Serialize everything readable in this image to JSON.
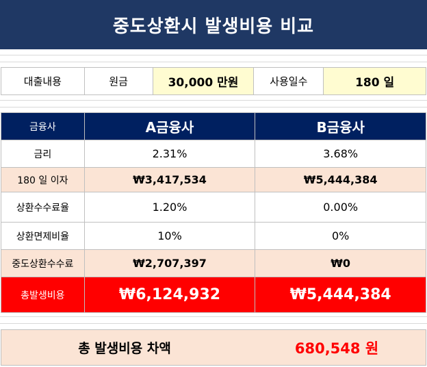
{
  "title": "중도상환시 발생비용 비교",
  "loan": {
    "label": "대출내용",
    "principal_label": "원금",
    "principal_value": "30,000 만원",
    "days_label": "사용일수",
    "days_value": "180 일"
  },
  "comparison": {
    "header": {
      "label": "금융사",
      "a": "A금융사",
      "b": "B금융사"
    },
    "rows": [
      {
        "label": "금리",
        "a": "2.31%",
        "b": "3.68%"
      },
      {
        "label": "180 일 이자",
        "a": "₩3,417,534",
        "b": "₩5,444,384"
      },
      {
        "label": "상환수수료율",
        "a": "1.20%",
        "b": "0.00%"
      },
      {
        "label": "상환면제비율",
        "a": "10%",
        "b": "0%"
      },
      {
        "label": "중도상환수수료",
        "a": "₩2,707,397",
        "b": "₩0"
      }
    ],
    "total": {
      "label": "총발생비용",
      "a": "₩6,124,932",
      "b": "₩5,444,384"
    }
  },
  "summary": {
    "label": "총 발생비용 차액",
    "value": "680,548 원"
  },
  "colors": {
    "title_bg": "#1f3864",
    "header_bg": "#002060",
    "highlight_yellow": "#fffcd1",
    "shade_peach": "#fbe4d5",
    "total_red": "#ff0000"
  }
}
